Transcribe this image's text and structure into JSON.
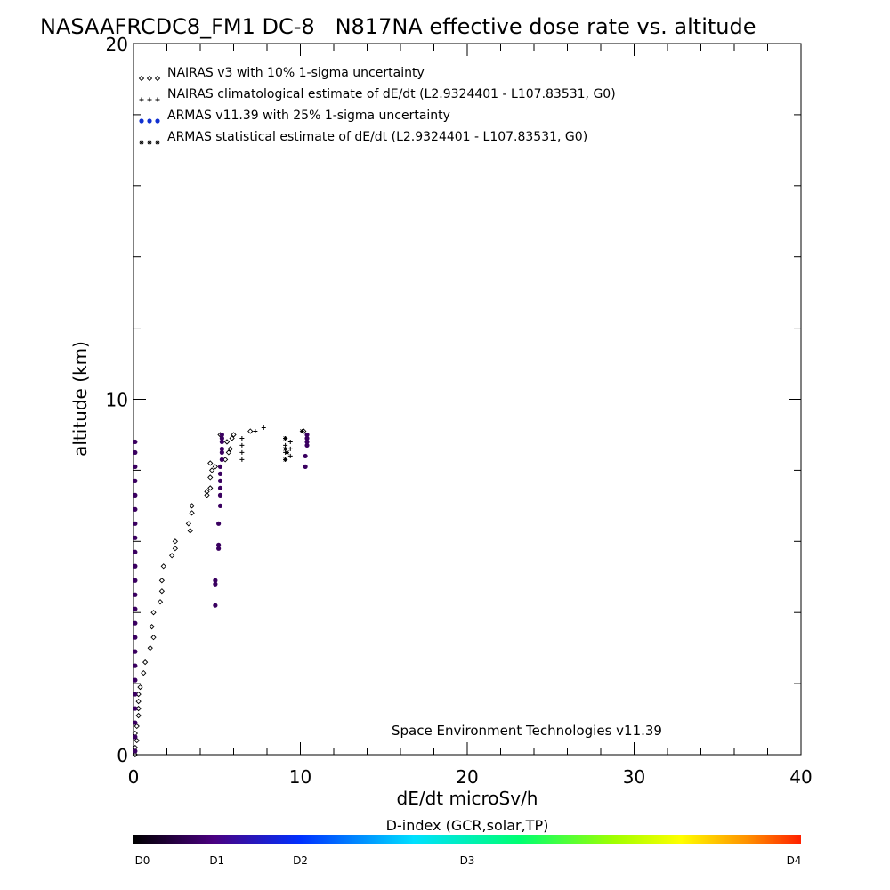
{
  "chart_data": {
    "type": "scatter",
    "title": "NASAAFRCDC8_FM1 DC-8   N817NA effective dose rate vs. altitude",
    "xlabel": "dE/dt microSv/h",
    "ylabel": "altitude (km)",
    "xlim": [
      0,
      40
    ],
    "ylim": [
      0,
      20
    ],
    "x_ticks": [
      "0",
      "10",
      "20",
      "30",
      "40"
    ],
    "y_ticks": [
      "0",
      "10",
      "20"
    ],
    "grid": false,
    "legend_position": "top-left",
    "annotation": "Space Environment Technologies v11.39",
    "colorbar": {
      "title": "D-index (GCR,solar,TP)",
      "labels": [
        "D0",
        "D1",
        "D2",
        "D3",
        "D4"
      ],
      "label_positions": [
        0,
        0.125,
        0.25,
        0.5,
        1.0
      ]
    },
    "series": [
      {
        "name": "NAIRAS v3 with 10% 1-sigma uncertainty",
        "marker": "diamond",
        "color": "#000000",
        "points": [
          [
            0.1,
            0.0
          ],
          [
            0.1,
            0.2
          ],
          [
            0.2,
            0.4
          ],
          [
            0.1,
            0.6
          ],
          [
            0.2,
            0.8
          ],
          [
            0.3,
            1.1
          ],
          [
            0.3,
            1.3
          ],
          [
            0.3,
            1.5
          ],
          [
            0.3,
            1.7
          ],
          [
            0.4,
            1.9
          ],
          [
            0.6,
            2.3
          ],
          [
            0.7,
            2.6
          ],
          [
            1.0,
            3.0
          ],
          [
            1.2,
            3.3
          ],
          [
            1.1,
            3.6
          ],
          [
            1.2,
            4.0
          ],
          [
            1.6,
            4.3
          ],
          [
            1.7,
            4.6
          ],
          [
            1.7,
            4.9
          ],
          [
            1.8,
            5.3
          ],
          [
            2.3,
            5.6
          ],
          [
            2.5,
            5.8
          ],
          [
            2.5,
            6.0
          ],
          [
            3.4,
            6.3
          ],
          [
            3.3,
            6.5
          ],
          [
            3.5,
            6.8
          ],
          [
            3.5,
            7.0
          ],
          [
            4.4,
            7.3
          ],
          [
            4.4,
            7.4
          ],
          [
            4.6,
            7.5
          ],
          [
            4.6,
            7.8
          ],
          [
            4.7,
            8.0
          ],
          [
            4.9,
            8.1
          ],
          [
            4.6,
            8.2
          ],
          [
            5.5,
            8.3
          ],
          [
            5.7,
            8.5
          ],
          [
            5.8,
            8.6
          ],
          [
            5.6,
            8.8
          ],
          [
            5.9,
            8.9
          ],
          [
            6.0,
            9.0
          ],
          [
            5.2,
            9.0
          ],
          [
            7.0,
            9.1
          ],
          [
            10.2,
            9.1
          ]
        ]
      },
      {
        "name": "NAIRAS climatological estimate of dE/dt (L2.9324401 - L107.83531, G0)",
        "marker": "plus",
        "color": "#000000",
        "points": [
          [
            6.5,
            8.3
          ],
          [
            6.5,
            8.5
          ],
          [
            6.5,
            8.7
          ],
          [
            6.5,
            8.9
          ],
          [
            7.3,
            9.1
          ],
          [
            7.8,
            9.2
          ],
          [
            9.1,
            8.3
          ],
          [
            9.1,
            8.5
          ],
          [
            9.1,
            8.7
          ],
          [
            9.1,
            8.9
          ],
          [
            9.4,
            8.4
          ],
          [
            9.4,
            8.6
          ],
          [
            9.4,
            8.8
          ]
        ]
      },
      {
        "name": "ARMAS v11.39 with 25% 1-sigma uncertainty",
        "marker": "circle",
        "color": "#3a0060",
        "points": [
          [
            0.1,
            0.1
          ],
          [
            0.1,
            0.5
          ],
          [
            0.1,
            0.9
          ],
          [
            0.1,
            1.3
          ],
          [
            0.1,
            1.7
          ],
          [
            0.1,
            2.1
          ],
          [
            0.1,
            2.5
          ],
          [
            0.1,
            2.9
          ],
          [
            0.1,
            3.3
          ],
          [
            0.1,
            3.7
          ],
          [
            0.1,
            4.1
          ],
          [
            0.1,
            4.5
          ],
          [
            0.1,
            4.9
          ],
          [
            0.1,
            5.3
          ],
          [
            0.1,
            5.7
          ],
          [
            0.1,
            6.1
          ],
          [
            0.1,
            6.5
          ],
          [
            0.1,
            6.9
          ],
          [
            0.1,
            7.3
          ],
          [
            0.1,
            7.7
          ],
          [
            0.1,
            8.1
          ],
          [
            0.1,
            8.5
          ],
          [
            0.1,
            8.8
          ],
          [
            4.9,
            4.2
          ],
          [
            4.9,
            4.8
          ],
          [
            4.9,
            4.9
          ],
          [
            5.1,
            5.8
          ],
          [
            5.1,
            5.9
          ],
          [
            5.1,
            6.5
          ],
          [
            5.2,
            7.0
          ],
          [
            5.2,
            7.3
          ],
          [
            5.2,
            7.5
          ],
          [
            5.2,
            7.7
          ],
          [
            5.2,
            7.9
          ],
          [
            5.2,
            8.1
          ],
          [
            5.3,
            8.3
          ],
          [
            5.3,
            8.5
          ],
          [
            5.3,
            8.6
          ],
          [
            5.3,
            8.8
          ],
          [
            5.3,
            8.9
          ],
          [
            5.3,
            9.0
          ],
          [
            10.3,
            8.1
          ],
          [
            10.3,
            8.4
          ],
          [
            10.4,
            8.7
          ],
          [
            10.4,
            8.8
          ],
          [
            10.4,
            8.9
          ],
          [
            10.4,
            9.0
          ]
        ]
      },
      {
        "name": "ARMAS statistical estimate of dE/dt (L2.9324401 - L107.83531, G0)",
        "marker": "asterisk",
        "color": "#000000",
        "points": [
          [
            9.1,
            8.3
          ],
          [
            9.1,
            8.6
          ],
          [
            9.1,
            8.9
          ],
          [
            9.2,
            8.5
          ],
          [
            10.1,
            9.1
          ]
        ]
      }
    ]
  }
}
